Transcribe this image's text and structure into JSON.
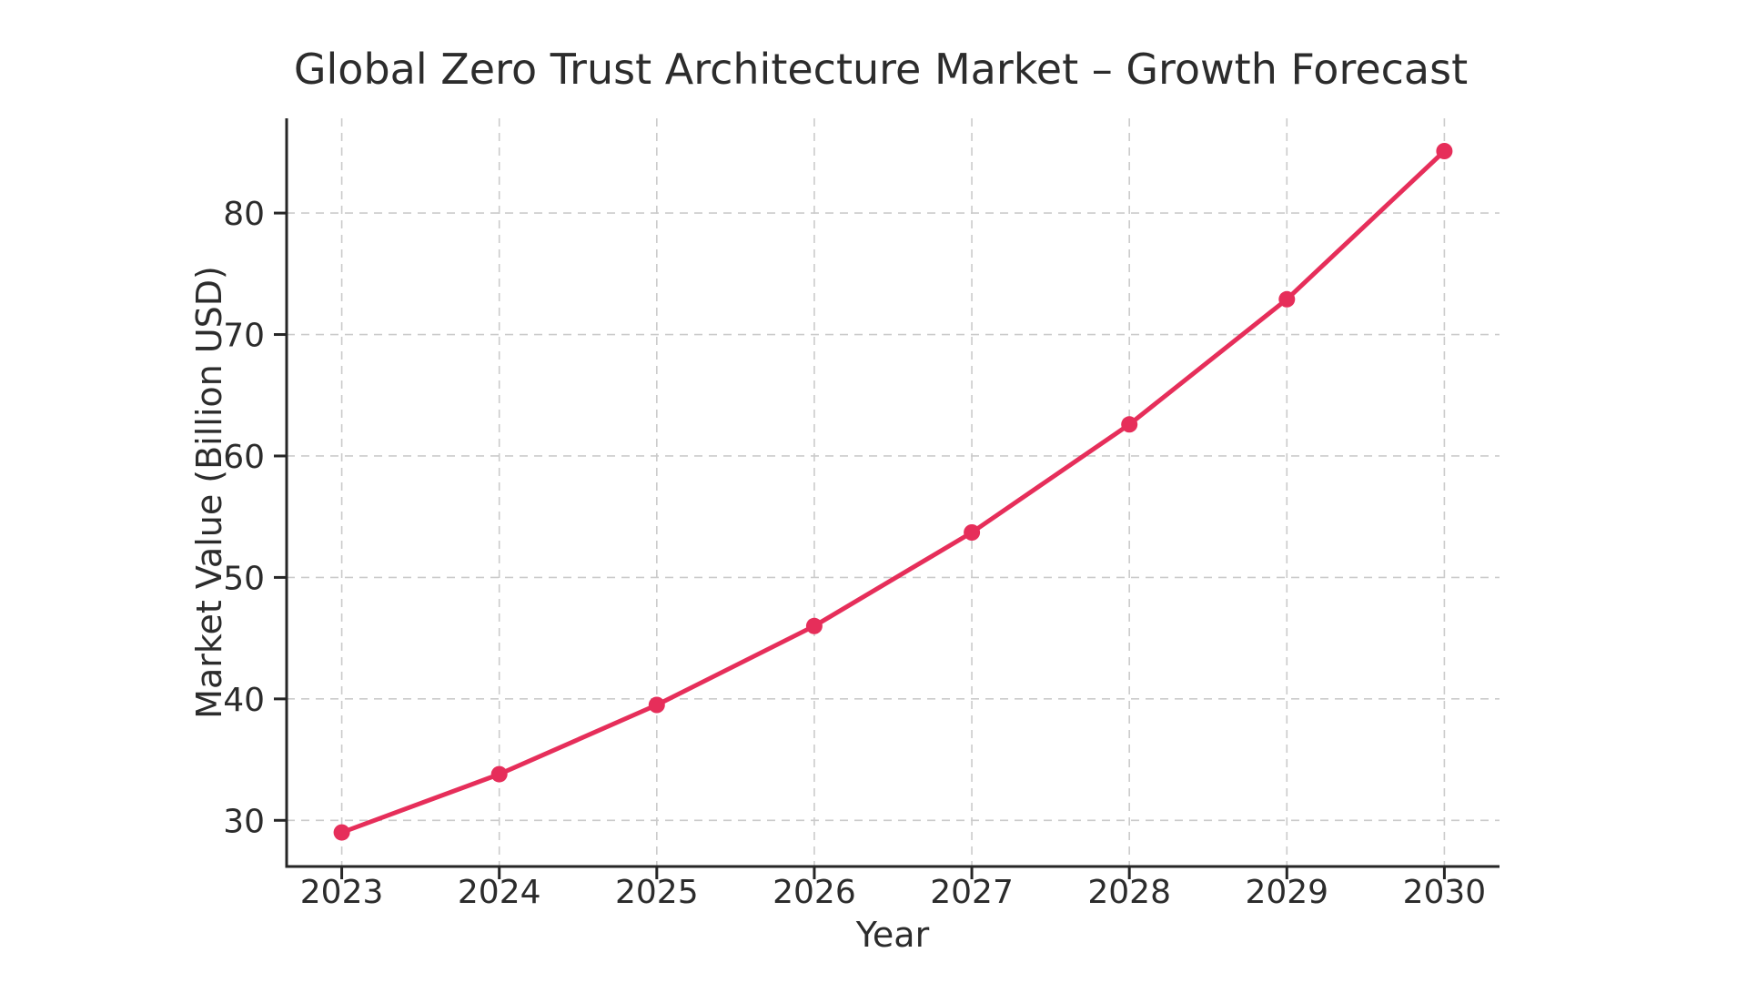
{
  "chart_data": {
    "type": "line",
    "title": "Global Zero Trust Architecture Market – Growth Forecast",
    "xlabel": "Year",
    "ylabel": "Market Value (Billion USD)",
    "x": [
      2023,
      2024,
      2025,
      2026,
      2027,
      2028,
      2029,
      2030
    ],
    "values": [
      29.0,
      33.8,
      39.5,
      46.0,
      53.7,
      62.6,
      72.9,
      85.1
    ],
    "xticks": [
      2023,
      2024,
      2025,
      2026,
      2027,
      2028,
      2029,
      2030
    ],
    "yticks": [
      30,
      40,
      50,
      60,
      70,
      80
    ],
    "xlim": [
      2022.65,
      2030.35
    ],
    "ylim": [
      26.2,
      87.8
    ],
    "grid": "dashed",
    "legend": "none",
    "marker": "circle",
    "colors": {
      "line": "#e62e5a",
      "grid": "#cbcbcb",
      "spine": "#262626",
      "text": "#2c2c2c",
      "background": "#ffffff"
    }
  }
}
